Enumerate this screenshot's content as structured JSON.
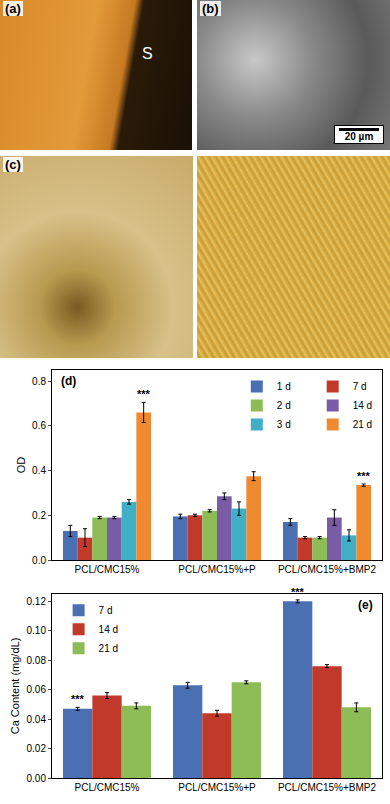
{
  "images": [
    {
      "label": "(a)",
      "texts": [
        "S"
      ]
    },
    {
      "label": "(b)",
      "scale_bar": "20 µm"
    },
    {
      "label": "(c)"
    }
  ],
  "chart_data": [
    {
      "type": "bar",
      "panel_label": "(d)",
      "y_label": "OD",
      "categories": [
        "PCL/CMC15%",
        "PCL/CMC15%+P",
        "PCL/CMC15%+BMP2"
      ],
      "series": [
        {
          "name": "1 d",
          "color": "#4a6fb3",
          "values": [
            0.13,
            0.195,
            0.17
          ],
          "errors": [
            0.025,
            0.01,
            0.015
          ]
        },
        {
          "name": "7 d",
          "color": "#c0392b",
          "values": [
            0.1,
            0.2,
            0.1
          ],
          "errors": [
            0.04,
            0.005,
            0.005
          ]
        },
        {
          "name": "2 d",
          "color": "#8dbb55",
          "values": [
            0.19,
            0.22,
            0.1
          ],
          "errors": [
            0.005,
            0.005,
            0.005
          ]
        },
        {
          "name": "14 d",
          "color": "#7a5ba6",
          "values": [
            0.19,
            0.285,
            0.19
          ],
          "errors": [
            0.005,
            0.015,
            0.035
          ]
        },
        {
          "name": "3 d",
          "color": "#3fafc7",
          "values": [
            0.26,
            0.23,
            0.11
          ],
          "errors": [
            0.01,
            0.03,
            0.025
          ]
        },
        {
          "name": "21 d",
          "color": "#f08a30",
          "values": [
            0.66,
            0.375,
            0.335
          ],
          "errors": [
            0.045,
            0.02,
            0.005
          ]
        }
      ],
      "ylim": [
        0,
        0.85
      ],
      "yticks": [
        {
          "value": 0,
          "label": "0.0"
        },
        0.2,
        0.4,
        0.6,
        0.8
      ],
      "annotations": [
        {
          "text": "***",
          "category": "PCL/CMC15%",
          "series": "21 d"
        },
        {
          "text": "***",
          "category": "PCL/CMC15%+BMP2",
          "series": "21 d"
        }
      ],
      "legend": "upper right",
      "grid": false
    },
    {
      "type": "bar",
      "panel_label": "(e)",
      "y_label": "Ca Content (mg/dL)",
      "categories": [
        "PCL/CMC15%",
        "PCL/CMC15%+P",
        "PCL/CMC15%+BMP2"
      ],
      "series": [
        {
          "name": "7 d",
          "color": "#4a6fb3",
          "values": [
            0.047,
            0.063,
            0.12
          ],
          "errors": [
            0.001,
            0.002,
            0.001
          ]
        },
        {
          "name": "14 d",
          "color": "#c0392b",
          "values": [
            0.056,
            0.044,
            0.076
          ],
          "errors": [
            0.002,
            0.002,
            0.001
          ]
        },
        {
          "name": "21 d",
          "color": "#8dbb55",
          "values": [
            0.049,
            0.065,
            0.048
          ],
          "errors": [
            0.002,
            0.001,
            0.003
          ]
        }
      ],
      "ylim": [
        0,
        0.125
      ],
      "yticks": [
        {
          "value": 0,
          "label": "0.00"
        },
        0.02,
        0.04,
        0.06,
        0.08,
        {
          "value": 0.1,
          "label": "0.10"
        },
        0.12
      ],
      "annotations": [
        {
          "text": "***",
          "category": "PCL/CMC15%",
          "series": "7 d"
        },
        {
          "text": "***",
          "category": "PCL/CMC15%+BMP2",
          "series": "7 d"
        }
      ],
      "legend": "upper left",
      "grid": false
    }
  ]
}
